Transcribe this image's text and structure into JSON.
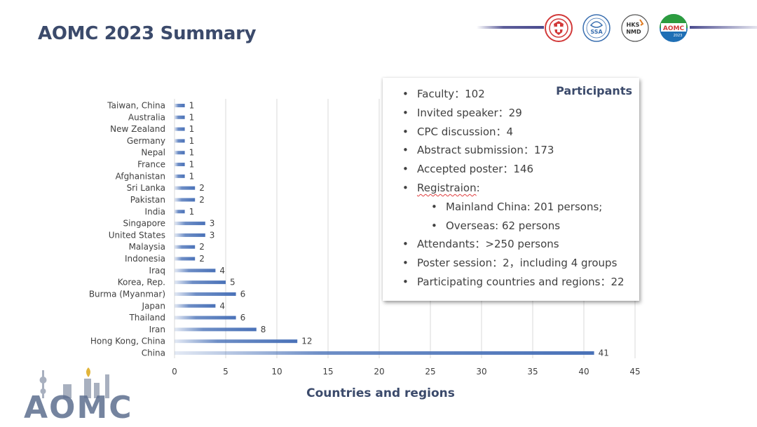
{
  "page": {
    "title": "AOMC 2023 Summary"
  },
  "logos": {
    "org1": {
      "icon": "red-medical-emblem-icon"
    },
    "org2": {
      "text": "SSA",
      "icon": "ssa-emblem-icon"
    },
    "org3": {
      "text_top": "HKS",
      "text_bottom": "NMD",
      "icon": "hks-nmd-emblem-icon"
    },
    "org4": {
      "text": "AOMC",
      "sub": "2023",
      "icon": "aomc-circle-logo-icon"
    }
  },
  "participants": {
    "title": "Participants",
    "items": [
      {
        "level": 1,
        "text": "Faculty：102"
      },
      {
        "level": 1,
        "text": "Invited speaker：29"
      },
      {
        "level": 1,
        "text": "CPC discussion：4"
      },
      {
        "level": 1,
        "text": "Abstract submission：173"
      },
      {
        "level": 1,
        "text": "Accepted poster：146"
      },
      {
        "level": 1,
        "text": "Registraion:",
        "misspelled": true
      },
      {
        "level": 2,
        "text": "Mainland China: 201 persons;"
      },
      {
        "level": 2,
        "text": "Overseas: 62 persons"
      },
      {
        "level": 1,
        "text": "Attendants：>250 persons"
      },
      {
        "level": 1,
        "text": "Poster session：2，including 4 groups"
      },
      {
        "level": 1,
        "text": "Participating countries and regions：22"
      }
    ]
  },
  "chart_data": {
    "type": "bar",
    "orientation": "horizontal",
    "title": "",
    "xlabel": "Countries and regions",
    "ylabel": "",
    "xlim": [
      0,
      45
    ],
    "xticks": [
      0,
      5,
      10,
      15,
      20,
      25,
      30,
      35,
      40,
      45
    ],
    "grid": true,
    "legend": "none",
    "bar_color": "#4a72b8",
    "categories": [
      "Taiwan, China",
      "Australia",
      "New Zealand",
      "Germany",
      "Nepal",
      "France",
      "Afghanistan",
      "Sri Lanka",
      "Pakistan",
      "India",
      "Singapore",
      "United States",
      "Malaysia",
      "Indonesia",
      "Iraq",
      "Korea, Rep.",
      "Burma (Myanmar)",
      "Japan",
      "Thailand",
      "Iran",
      "Hong Kong, China",
      "China"
    ],
    "values": [
      1,
      1,
      1,
      1,
      1,
      1,
      1,
      2,
      2,
      1,
      3,
      3,
      2,
      2,
      4,
      5,
      6,
      4,
      6,
      8,
      12,
      41
    ]
  },
  "footer_logo": {
    "text": "AOMC",
    "icon": "aomc-skyline-logo-icon"
  },
  "colors": {
    "title": "#3b4a6b",
    "bar": "#4a72b8",
    "logo_line": "#4b4c8f"
  }
}
